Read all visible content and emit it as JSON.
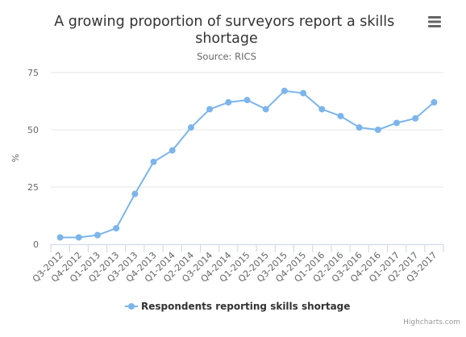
{
  "chart_data": {
    "type": "line",
    "title": "A growing proportion of surveyors report a skills shortage",
    "title_lines": [
      "A growing proportion of surveyors report a skills",
      "shortage"
    ],
    "subtitle": "Source: RICS",
    "xlabel": "",
    "ylabel": "%",
    "ylim": [
      0,
      75
    ],
    "yticks": [
      0,
      25,
      50,
      75
    ],
    "grid": true,
    "legend_position": "bottom",
    "categories": [
      "Q3-2012",
      "Q4-2012",
      "Q1-2013",
      "Q2-2013",
      "Q3-2013",
      "Q4-2013",
      "Q1-2014",
      "Q2-2014",
      "Q3-2014",
      "Q4-2014",
      "Q1-2015",
      "Q2-2015",
      "Q3-2015",
      "Q4-2015",
      "Q1-2016",
      "Q2-2016",
      "Q3-2016",
      "Q4-2016",
      "Q1-2017",
      "Q2-2017",
      "Q3-2017"
    ],
    "series": [
      {
        "name": "Respondents reporting skills shortage",
        "color": "#7cb5ec",
        "values": [
          3,
          3,
          4,
          7,
          22,
          36,
          41,
          51,
          59,
          62,
          63,
          59,
          67,
          66,
          59,
          56,
          51,
          50,
          53,
          55,
          62
        ]
      }
    ]
  },
  "credits": "Highcharts.com",
  "menu_icon": "hamburger-menu-icon",
  "colors": {
    "series": "#7cb5ec",
    "grid": "#e6e6e6",
    "axis": "#ccd6eb"
  }
}
